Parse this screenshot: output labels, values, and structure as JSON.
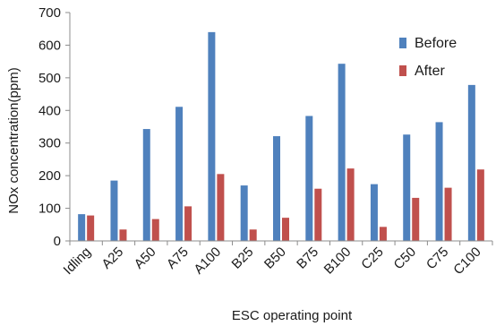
{
  "chart_data": {
    "type": "bar",
    "title": "",
    "xlabel": "ESC operating point",
    "ylabel": "NOx concentration(ppm)",
    "ylim": [
      0,
      700
    ],
    "yticks": [
      0,
      100,
      200,
      300,
      400,
      500,
      600,
      700
    ],
    "grid": false,
    "legend_position": "top-right",
    "categories": [
      "Idling",
      "A25",
      "A50",
      "A75",
      "A100",
      "B25",
      "B50",
      "B75",
      "B100",
      "C25",
      "C50",
      "C75",
      "C100"
    ],
    "series": [
      {
        "name": "Before",
        "color": "#4f81bd",
        "values": [
          82,
          185,
          343,
          411,
          640,
          170,
          321,
          383,
          543,
          174,
          326,
          364,
          478
        ]
      },
      {
        "name": "After",
        "color": "#c0504d",
        "values": [
          78,
          35,
          67,
          106,
          205,
          35,
          71,
          160,
          222,
          43,
          132,
          163,
          219
        ]
      }
    ]
  }
}
